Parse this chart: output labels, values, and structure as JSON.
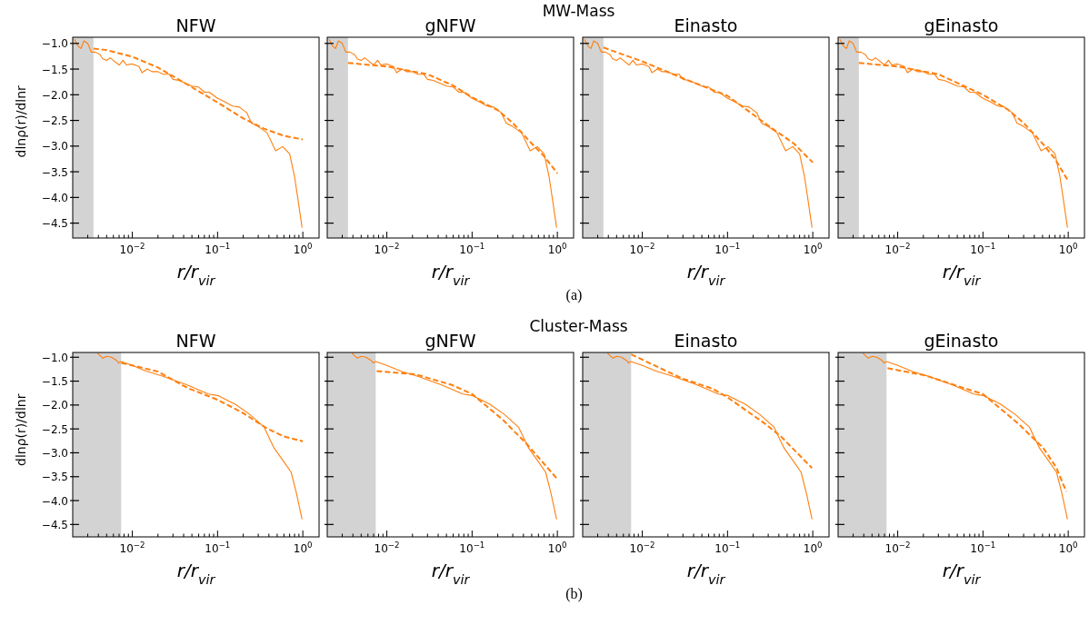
{
  "chart_data": [
    {
      "type": "line",
      "title": "NFW",
      "xlabel": "r/r$_{vir}$",
      "ylabel": "dlnρ(r)/dlnr",
      "annotations": [
        "MW-Mass",
        "(a)"
      ],
      "log": "x",
      "xlim": [
        0.002,
        1.55
      ],
      "ylim": [
        -4.79,
        -0.88
      ],
      "xticks": [
        {
          "value": 0.003,
          "label": null
        },
        {
          "value": 0.004,
          "label": null
        },
        {
          "value": 0.005,
          "label": null
        },
        {
          "value": 0.006,
          "label": null
        },
        {
          "value": 0.007,
          "label": null
        },
        {
          "value": 0.008,
          "label": null
        },
        {
          "value": 0.009,
          "label": null
        },
        {
          "value": 0.01,
          "label": "10$^{−2}$"
        },
        {
          "value": 0.02,
          "label": null
        },
        {
          "value": 0.03,
          "label": null
        },
        {
          "value": 0.04,
          "label": null
        },
        {
          "value": 0.05,
          "label": null
        },
        {
          "value": 0.06,
          "label": null
        },
        {
          "value": 0.07,
          "label": null
        },
        {
          "value": 0.08,
          "label": null
        },
        {
          "value": 0.09,
          "label": null
        },
        {
          "value": 0.1,
          "label": "10$^{−1}$"
        },
        {
          "value": 0.2,
          "label": null
        },
        {
          "value": 0.3,
          "label": null
        },
        {
          "value": 0.4,
          "label": null
        },
        {
          "value": 0.5,
          "label": null
        },
        {
          "value": 0.6,
          "label": null
        },
        {
          "value": 0.7,
          "label": null
        },
        {
          "value": 0.8,
          "label": null
        },
        {
          "value": 0.9,
          "label": null
        },
        {
          "value": 1,
          "label": "10$^{0}$"
        }
      ],
      "yticks": [
        {
          "value": -1,
          "label": "−1.0"
        },
        {
          "value": -1.5,
          "label": "−1.5"
        },
        {
          "value": -2,
          "label": "−2.0"
        },
        {
          "value": -2.5,
          "label": "−2.5"
        },
        {
          "value": -3,
          "label": "−3.0"
        },
        {
          "value": -3.5,
          "label": "−3.5"
        },
        {
          "value": -4,
          "label": "−4.0"
        },
        {
          "value": -4.5,
          "label": "−4.5"
        }
      ],
      "bands": [
        {
          "axis": "x",
          "from": 0.002,
          "to": 0.0035,
          "color": "#d3d3d3"
        }
      ],
      "series": [
        {
          "color": "#ff7f0e",
          "line_style": "solid",
          "x": [
            0.0021,
            0.0023,
            0.0025,
            0.0027,
            0.003,
            0.0033,
            0.0037,
            0.0042,
            0.0045,
            0.005,
            0.0055,
            0.0062,
            0.007,
            0.0078,
            0.0085,
            0.01,
            0.012,
            0.013,
            0.015,
            0.017,
            0.02,
            0.023,
            0.027,
            0.03,
            0.035,
            0.04,
            0.05,
            0.06,
            0.07,
            0.08,
            0.1,
            0.12,
            0.15,
            0.18,
            0.22,
            0.25,
            0.3,
            0.38,
            0.48,
            0.58,
            0.7,
            0.8,
            0.87,
            0.98
          ],
          "values": [
            -0.92,
            -1.05,
            -1.1,
            -0.95,
            -1.0,
            -1.17,
            -1.17,
            -1.22,
            -1.3,
            -1.33,
            -1.28,
            -1.35,
            -1.42,
            -1.33,
            -1.42,
            -1.4,
            -1.45,
            -1.57,
            -1.5,
            -1.55,
            -1.55,
            -1.6,
            -1.6,
            -1.7,
            -1.72,
            -1.76,
            -1.83,
            -1.85,
            -1.95,
            -1.95,
            -2.07,
            -2.13,
            -2.22,
            -2.24,
            -2.35,
            -2.55,
            -2.62,
            -2.74,
            -3.09,
            -3.01,
            -3.15,
            -3.6,
            -4.0,
            -4.59
          ]
        },
        {
          "color": "#ff7f0e",
          "line_style": "dashed",
          "x": [
            0.0035,
            0.005,
            0.01,
            0.02,
            0.044,
            0.1,
            0.2,
            0.35,
            0.6,
            1
          ],
          "values": [
            -1.1,
            -1.13,
            -1.26,
            -1.47,
            -1.8,
            -2.15,
            -2.46,
            -2.66,
            -2.8,
            -2.87
          ]
        }
      ]
    },
    {
      "type": "line",
      "title": "gNFW",
      "xlabel": "r/r$_{vir}$",
      "tick_labels": "x",
      "log": "x",
      "xlim": [
        0.002,
        1.55
      ],
      "ylim": [
        -4.79,
        -0.88
      ],
      "xticks": [
        {
          "value": 0.003,
          "label": null
        },
        {
          "value": 0.004,
          "label": null
        },
        {
          "value": 0.005,
          "label": null
        },
        {
          "value": 0.006,
          "label": null
        },
        {
          "value": 0.007,
          "label": null
        },
        {
          "value": 0.008,
          "label": null
        },
        {
          "value": 0.009,
          "label": null
        },
        {
          "value": 0.01,
          "label": "10$^{−2}$"
        },
        {
          "value": 0.02,
          "label": null
        },
        {
          "value": 0.03,
          "label": null
        },
        {
          "value": 0.04,
          "label": null
        },
        {
          "value": 0.05,
          "label": null
        },
        {
          "value": 0.06,
          "label": null
        },
        {
          "value": 0.07,
          "label": null
        },
        {
          "value": 0.08,
          "label": null
        },
        {
          "value": 0.09,
          "label": null
        },
        {
          "value": 0.1,
          "label": "10$^{−1}$"
        },
        {
          "value": 0.2,
          "label": null
        },
        {
          "value": 0.3,
          "label": null
        },
        {
          "value": 0.4,
          "label": null
        },
        {
          "value": 0.5,
          "label": null
        },
        {
          "value": 0.6,
          "label": null
        },
        {
          "value": 0.7,
          "label": null
        },
        {
          "value": 0.8,
          "label": null
        },
        {
          "value": 0.9,
          "label": null
        },
        {
          "value": 1,
          "label": "10$^{0}$"
        }
      ],
      "yticks": [
        {
          "value": -1,
          "label": null
        },
        {
          "value": -1.5,
          "label": null
        },
        {
          "value": -2,
          "label": null
        },
        {
          "value": -2.5,
          "label": null
        },
        {
          "value": -3,
          "label": null
        },
        {
          "value": -3.5,
          "label": null
        },
        {
          "value": -4,
          "label": null
        },
        {
          "value": -4.5,
          "label": null
        }
      ],
      "bands": [
        {
          "axis": "x",
          "from": 0.002,
          "to": 0.0035,
          "color": "#d3d3d3"
        }
      ],
      "series": [
        {
          "color": "#ff7f0e",
          "line_style": "solid",
          "x": [
            0.0021,
            0.0023,
            0.0025,
            0.0027,
            0.003,
            0.0033,
            0.0037,
            0.0042,
            0.0045,
            0.005,
            0.0055,
            0.0062,
            0.007,
            0.0078,
            0.0085,
            0.01,
            0.012,
            0.013,
            0.015,
            0.017,
            0.02,
            0.023,
            0.027,
            0.03,
            0.035,
            0.04,
            0.05,
            0.06,
            0.07,
            0.08,
            0.1,
            0.12,
            0.15,
            0.18,
            0.22,
            0.25,
            0.3,
            0.38,
            0.48,
            0.58,
            0.7,
            0.8,
            0.87,
            0.98
          ],
          "values": [
            -0.92,
            -1.05,
            -1.1,
            -0.95,
            -1.0,
            -1.17,
            -1.17,
            -1.22,
            -1.3,
            -1.33,
            -1.28,
            -1.35,
            -1.42,
            -1.33,
            -1.42,
            -1.4,
            -1.45,
            -1.57,
            -1.5,
            -1.55,
            -1.55,
            -1.6,
            -1.6,
            -1.7,
            -1.72,
            -1.76,
            -1.83,
            -1.85,
            -1.95,
            -1.95,
            -2.07,
            -2.13,
            -2.22,
            -2.24,
            -2.35,
            -2.55,
            -2.62,
            -2.74,
            -3.09,
            -3.01,
            -3.15,
            -3.6,
            -4.0,
            -4.59
          ]
        },
        {
          "color": "#ff7f0e",
          "line_style": "dashed",
          "x": [
            0.0035,
            0.01,
            0.03,
            0.06,
            0.1,
            0.2,
            0.3,
            0.5,
            0.7,
            1
          ],
          "values": [
            -1.38,
            -1.45,
            -1.6,
            -1.82,
            -2.05,
            -2.3,
            -2.55,
            -2.95,
            -3.2,
            -3.53
          ]
        }
      ]
    },
    {
      "type": "line",
      "title": "Einasto",
      "xlabel": "r/r$_{vir}$",
      "tick_labels": "x",
      "log": "x",
      "xlim": [
        0.002,
        1.55
      ],
      "ylim": [
        -4.79,
        -0.88
      ],
      "xticks": [
        {
          "value": 0.003,
          "label": null
        },
        {
          "value": 0.004,
          "label": null
        },
        {
          "value": 0.005,
          "label": null
        },
        {
          "value": 0.006,
          "label": null
        },
        {
          "value": 0.007,
          "label": null
        },
        {
          "value": 0.008,
          "label": null
        },
        {
          "value": 0.009,
          "label": null
        },
        {
          "value": 0.01,
          "label": "10$^{−2}$"
        },
        {
          "value": 0.02,
          "label": null
        },
        {
          "value": 0.03,
          "label": null
        },
        {
          "value": 0.04,
          "label": null
        },
        {
          "value": 0.05,
          "label": null
        },
        {
          "value": 0.06,
          "label": null
        },
        {
          "value": 0.07,
          "label": null
        },
        {
          "value": 0.08,
          "label": null
        },
        {
          "value": 0.09,
          "label": null
        },
        {
          "value": 0.1,
          "label": "10$^{−1}$"
        },
        {
          "value": 0.2,
          "label": null
        },
        {
          "value": 0.3,
          "label": null
        },
        {
          "value": 0.4,
          "label": null
        },
        {
          "value": 0.5,
          "label": null
        },
        {
          "value": 0.6,
          "label": null
        },
        {
          "value": 0.7,
          "label": null
        },
        {
          "value": 0.8,
          "label": null
        },
        {
          "value": 0.9,
          "label": null
        },
        {
          "value": 1,
          "label": "10$^{0}$"
        }
      ],
      "yticks": [
        {
          "value": -1,
          "label": null
        },
        {
          "value": -1.5,
          "label": null
        },
        {
          "value": -2,
          "label": null
        },
        {
          "value": -2.5,
          "label": null
        },
        {
          "value": -3,
          "label": null
        },
        {
          "value": -3.5,
          "label": null
        },
        {
          "value": -4,
          "label": null
        },
        {
          "value": -4.5,
          "label": null
        }
      ],
      "bands": [
        {
          "axis": "x",
          "from": 0.002,
          "to": 0.0035,
          "color": "#d3d3d3"
        }
      ],
      "series": [
        {
          "color": "#ff7f0e",
          "line_style": "solid",
          "x": [
            0.0021,
            0.0023,
            0.0025,
            0.0027,
            0.003,
            0.0033,
            0.0037,
            0.0042,
            0.0045,
            0.005,
            0.0055,
            0.0062,
            0.007,
            0.0078,
            0.0085,
            0.01,
            0.012,
            0.013,
            0.015,
            0.017,
            0.02,
            0.023,
            0.027,
            0.03,
            0.035,
            0.04,
            0.05,
            0.06,
            0.07,
            0.08,
            0.1,
            0.12,
            0.15,
            0.18,
            0.22,
            0.25,
            0.3,
            0.38,
            0.48,
            0.58,
            0.7,
            0.8,
            0.87,
            0.98
          ],
          "values": [
            -0.92,
            -1.05,
            -1.1,
            -0.95,
            -1.0,
            -1.17,
            -1.17,
            -1.22,
            -1.3,
            -1.33,
            -1.28,
            -1.35,
            -1.42,
            -1.33,
            -1.42,
            -1.4,
            -1.45,
            -1.57,
            -1.5,
            -1.55,
            -1.55,
            -1.6,
            -1.6,
            -1.7,
            -1.72,
            -1.76,
            -1.83,
            -1.85,
            -1.95,
            -1.95,
            -2.07,
            -2.13,
            -2.22,
            -2.24,
            -2.35,
            -2.55,
            -2.62,
            -2.74,
            -3.09,
            -3.01,
            -3.15,
            -3.6,
            -4.0,
            -4.59
          ]
        },
        {
          "color": "#ff7f0e",
          "line_style": "dashed",
          "x": [
            0.0035,
            0.01,
            0.03,
            0.1,
            0.3,
            0.6,
            1
          ],
          "values": [
            -1.08,
            -1.35,
            -1.68,
            -2.02,
            -2.6,
            -2.95,
            -3.32
          ]
        }
      ]
    },
    {
      "type": "line",
      "title": "gEinasto",
      "xlabel": "r/r$_{vir}$",
      "tick_labels": "x",
      "log": "x",
      "xlim": [
        0.002,
        1.55
      ],
      "ylim": [
        -4.79,
        -0.88
      ],
      "xticks": [
        {
          "value": 0.003,
          "label": null
        },
        {
          "value": 0.004,
          "label": null
        },
        {
          "value": 0.005,
          "label": null
        },
        {
          "value": 0.006,
          "label": null
        },
        {
          "value": 0.007,
          "label": null
        },
        {
          "value": 0.008,
          "label": null
        },
        {
          "value": 0.009,
          "label": null
        },
        {
          "value": 0.01,
          "label": "10$^{−2}$"
        },
        {
          "value": 0.02,
          "label": null
        },
        {
          "value": 0.03,
          "label": null
        },
        {
          "value": 0.04,
          "label": null
        },
        {
          "value": 0.05,
          "label": null
        },
        {
          "value": 0.06,
          "label": null
        },
        {
          "value": 0.07,
          "label": null
        },
        {
          "value": 0.08,
          "label": null
        },
        {
          "value": 0.09,
          "label": null
        },
        {
          "value": 0.1,
          "label": "10$^{−1}$"
        },
        {
          "value": 0.2,
          "label": null
        },
        {
          "value": 0.3,
          "label": null
        },
        {
          "value": 0.4,
          "label": null
        },
        {
          "value": 0.5,
          "label": null
        },
        {
          "value": 0.6,
          "label": null
        },
        {
          "value": 0.7,
          "label": null
        },
        {
          "value": 0.8,
          "label": null
        },
        {
          "value": 0.9,
          "label": null
        },
        {
          "value": 1,
          "label": "10$^{0}$"
        }
      ],
      "yticks": [
        {
          "value": -1,
          "label": null
        },
        {
          "value": -1.5,
          "label": null
        },
        {
          "value": -2,
          "label": null
        },
        {
          "value": -2.5,
          "label": null
        },
        {
          "value": -3,
          "label": null
        },
        {
          "value": -3.5,
          "label": null
        },
        {
          "value": -4,
          "label": null
        },
        {
          "value": -4.5,
          "label": null
        }
      ],
      "bands": [
        {
          "axis": "x",
          "from": 0.002,
          "to": 0.0035,
          "color": "#d3d3d3"
        }
      ],
      "series": [
        {
          "color": "#ff7f0e",
          "line_style": "solid",
          "x": [
            0.0021,
            0.0023,
            0.0025,
            0.0027,
            0.003,
            0.0033,
            0.0037,
            0.0042,
            0.0045,
            0.005,
            0.0055,
            0.0062,
            0.007,
            0.0078,
            0.0085,
            0.01,
            0.012,
            0.013,
            0.015,
            0.017,
            0.02,
            0.023,
            0.027,
            0.03,
            0.035,
            0.04,
            0.05,
            0.06,
            0.07,
            0.08,
            0.1,
            0.12,
            0.15,
            0.18,
            0.22,
            0.25,
            0.3,
            0.38,
            0.48,
            0.58,
            0.7,
            0.8,
            0.87,
            0.98
          ],
          "values": [
            -0.92,
            -1.05,
            -1.1,
            -0.95,
            -1.0,
            -1.17,
            -1.17,
            -1.22,
            -1.3,
            -1.33,
            -1.28,
            -1.35,
            -1.42,
            -1.33,
            -1.42,
            -1.4,
            -1.45,
            -1.57,
            -1.5,
            -1.55,
            -1.55,
            -1.6,
            -1.6,
            -1.7,
            -1.72,
            -1.76,
            -1.83,
            -1.85,
            -1.95,
            -1.95,
            -2.07,
            -2.13,
            -2.22,
            -2.24,
            -2.35,
            -2.55,
            -2.62,
            -2.74,
            -3.09,
            -3.01,
            -3.15,
            -3.6,
            -4.0,
            -4.59
          ]
        },
        {
          "color": "#ff7f0e",
          "line_style": "dashed",
          "x": [
            0.0035,
            0.01,
            0.03,
            0.1,
            0.2,
            0.3,
            0.5,
            0.7,
            1
          ],
          "values": [
            -1.38,
            -1.45,
            -1.6,
            -2.0,
            -2.3,
            -2.55,
            -2.95,
            -3.25,
            -3.68
          ]
        }
      ]
    },
    {
      "type": "line",
      "title": "NFW",
      "xlabel": "r/r$_{vir}$",
      "ylabel": "dlnρ(r)/dlnr",
      "annotations": [
        "Cluster-Mass",
        "(b)"
      ],
      "log": "x",
      "xlim": [
        0.002,
        1.55
      ],
      "ylim": [
        -4.76,
        -0.9
      ],
      "xticks": [
        {
          "value": 0.003,
          "label": null
        },
        {
          "value": 0.004,
          "label": null
        },
        {
          "value": 0.005,
          "label": null
        },
        {
          "value": 0.006,
          "label": null
        },
        {
          "value": 0.007,
          "label": null
        },
        {
          "value": 0.008,
          "label": null
        },
        {
          "value": 0.009,
          "label": null
        },
        {
          "value": 0.01,
          "label": "10$^{−2}$"
        },
        {
          "value": 0.02,
          "label": null
        },
        {
          "value": 0.03,
          "label": null
        },
        {
          "value": 0.04,
          "label": null
        },
        {
          "value": 0.05,
          "label": null
        },
        {
          "value": 0.06,
          "label": null
        },
        {
          "value": 0.07,
          "label": null
        },
        {
          "value": 0.08,
          "label": null
        },
        {
          "value": 0.09,
          "label": null
        },
        {
          "value": 0.1,
          "label": "10$^{−1}$"
        },
        {
          "value": 0.2,
          "label": null
        },
        {
          "value": 0.3,
          "label": null
        },
        {
          "value": 0.4,
          "label": null
        },
        {
          "value": 0.5,
          "label": null
        },
        {
          "value": 0.6,
          "label": null
        },
        {
          "value": 0.7,
          "label": null
        },
        {
          "value": 0.8,
          "label": null
        },
        {
          "value": 0.9,
          "label": null
        },
        {
          "value": 1,
          "label": "10$^{0}$"
        }
      ],
      "yticks": [
        {
          "value": -1,
          "label": "−1.0"
        },
        {
          "value": -1.5,
          "label": "−1.5"
        },
        {
          "value": -2,
          "label": "−2.0"
        },
        {
          "value": -2.5,
          "label": "−2.5"
        },
        {
          "value": -3,
          "label": "−3.0"
        },
        {
          "value": -3.5,
          "label": "−3.5"
        },
        {
          "value": -4,
          "label": "−4.0"
        },
        {
          "value": -4.5,
          "label": "−4.5"
        }
      ],
      "bands": [
        {
          "axis": "x",
          "from": 0.002,
          "to": 0.0074,
          "color": "#d3d3d3"
        }
      ],
      "series": [
        {
          "color": "#ff7f0e",
          "line_style": "solid",
          "x": [
            0.0039,
            0.0045,
            0.005,
            0.0057,
            0.0066,
            0.0069,
            0.0074,
            0.01,
            0.0145,
            0.023,
            0.044,
            0.078,
            0.1,
            0.16,
            0.24,
            0.35,
            0.46,
            0.6,
            0.73,
            0.84,
            0.98
          ],
          "values": [
            -0.91,
            -1.02,
            -0.98,
            -1.0,
            -1.07,
            -1.12,
            -1.09,
            -1.17,
            -1.29,
            -1.4,
            -1.58,
            -1.77,
            -1.8,
            -1.98,
            -2.2,
            -2.46,
            -2.9,
            -3.19,
            -3.41,
            -3.84,
            -4.39
          ]
        },
        {
          "color": "#ff7f0e",
          "line_style": "dashed",
          "x": [
            0.0074,
            0.01,
            0.02,
            0.044,
            0.1,
            0.2,
            0.38,
            0.6,
            1
          ],
          "values": [
            -1.12,
            -1.17,
            -1.3,
            -1.64,
            -1.89,
            -2.17,
            -2.49,
            -2.66,
            -2.76
          ]
        }
      ]
    },
    {
      "type": "line",
      "title": "gNFW",
      "xlabel": "r/r$_{vir}$",
      "tick_labels": "x",
      "log": "x",
      "xlim": [
        0.002,
        1.55
      ],
      "ylim": [
        -4.76,
        -0.9
      ],
      "xticks": [
        {
          "value": 0.003,
          "label": null
        },
        {
          "value": 0.004,
          "label": null
        },
        {
          "value": 0.005,
          "label": null
        },
        {
          "value": 0.006,
          "label": null
        },
        {
          "value": 0.007,
          "label": null
        },
        {
          "value": 0.008,
          "label": null
        },
        {
          "value": 0.009,
          "label": null
        },
        {
          "value": 0.01,
          "label": "10$^{−2}$"
        },
        {
          "value": 0.02,
          "label": null
        },
        {
          "value": 0.03,
          "label": null
        },
        {
          "value": 0.04,
          "label": null
        },
        {
          "value": 0.05,
          "label": null
        },
        {
          "value": 0.06,
          "label": null
        },
        {
          "value": 0.07,
          "label": null
        },
        {
          "value": 0.08,
          "label": null
        },
        {
          "value": 0.09,
          "label": null
        },
        {
          "value": 0.1,
          "label": "10$^{−1}$"
        },
        {
          "value": 0.2,
          "label": null
        },
        {
          "value": 0.3,
          "label": null
        },
        {
          "value": 0.4,
          "label": null
        },
        {
          "value": 0.5,
          "label": null
        },
        {
          "value": 0.6,
          "label": null
        },
        {
          "value": 0.7,
          "label": null
        },
        {
          "value": 0.8,
          "label": null
        },
        {
          "value": 0.9,
          "label": null
        },
        {
          "value": 1,
          "label": "10$^{0}$"
        }
      ],
      "yticks": [
        {
          "value": -1,
          "label": null
        },
        {
          "value": -1.5,
          "label": null
        },
        {
          "value": -2,
          "label": null
        },
        {
          "value": -2.5,
          "label": null
        },
        {
          "value": -3,
          "label": null
        },
        {
          "value": -3.5,
          "label": null
        },
        {
          "value": -4,
          "label": null
        },
        {
          "value": -4.5,
          "label": null
        }
      ],
      "bands": [
        {
          "axis": "x",
          "from": 0.002,
          "to": 0.0074,
          "color": "#d3d3d3"
        }
      ],
      "series": [
        {
          "color": "#ff7f0e",
          "line_style": "solid",
          "x": [
            0.0039,
            0.0045,
            0.005,
            0.0057,
            0.0066,
            0.0069,
            0.0074,
            0.01,
            0.0145,
            0.023,
            0.044,
            0.078,
            0.1,
            0.16,
            0.24,
            0.35,
            0.46,
            0.6,
            0.73,
            0.84,
            0.98
          ],
          "values": [
            -0.91,
            -1.02,
            -0.98,
            -1.0,
            -1.07,
            -1.12,
            -1.09,
            -1.17,
            -1.29,
            -1.4,
            -1.58,
            -1.77,
            -1.8,
            -1.98,
            -2.2,
            -2.46,
            -2.9,
            -3.19,
            -3.41,
            -3.84,
            -4.39
          ]
        },
        {
          "color": "#ff7f0e",
          "line_style": "dashed",
          "x": [
            0.0076,
            0.022,
            0.058,
            0.1,
            0.23,
            0.44,
            1
          ],
          "values": [
            -1.29,
            -1.36,
            -1.58,
            -1.77,
            -2.31,
            -2.82,
            -3.55
          ]
        }
      ]
    },
    {
      "type": "line",
      "title": "Einasto",
      "xlabel": "r/r$_{vir}$",
      "tick_labels": "x",
      "log": "x",
      "xlim": [
        0.002,
        1.55
      ],
      "ylim": [
        -4.76,
        -0.9
      ],
      "xticks": [
        {
          "value": 0.003,
          "label": null
        },
        {
          "value": 0.004,
          "label": null
        },
        {
          "value": 0.005,
          "label": null
        },
        {
          "value": 0.006,
          "label": null
        },
        {
          "value": 0.007,
          "label": null
        },
        {
          "value": 0.008,
          "label": null
        },
        {
          "value": 0.009,
          "label": null
        },
        {
          "value": 0.01,
          "label": "10$^{−2}$"
        },
        {
          "value": 0.02,
          "label": null
        },
        {
          "value": 0.03,
          "label": null
        },
        {
          "value": 0.04,
          "label": null
        },
        {
          "value": 0.05,
          "label": null
        },
        {
          "value": 0.06,
          "label": null
        },
        {
          "value": 0.07,
          "label": null
        },
        {
          "value": 0.08,
          "label": null
        },
        {
          "value": 0.09,
          "label": null
        },
        {
          "value": 0.1,
          "label": "10$^{−1}$"
        },
        {
          "value": 0.2,
          "label": null
        },
        {
          "value": 0.3,
          "label": null
        },
        {
          "value": 0.4,
          "label": null
        },
        {
          "value": 0.5,
          "label": null
        },
        {
          "value": 0.6,
          "label": null
        },
        {
          "value": 0.7,
          "label": null
        },
        {
          "value": 0.8,
          "label": null
        },
        {
          "value": 0.9,
          "label": null
        },
        {
          "value": 1,
          "label": "10$^{0}$"
        }
      ],
      "yticks": [
        {
          "value": -1,
          "label": null
        },
        {
          "value": -1.5,
          "label": null
        },
        {
          "value": -2,
          "label": null
        },
        {
          "value": -2.5,
          "label": null
        },
        {
          "value": -3,
          "label": null
        },
        {
          "value": -3.5,
          "label": null
        },
        {
          "value": -4,
          "label": null
        },
        {
          "value": -4.5,
          "label": null
        }
      ],
      "bands": [
        {
          "axis": "x",
          "from": 0.002,
          "to": 0.0074,
          "color": "#d3d3d3"
        }
      ],
      "series": [
        {
          "color": "#ff7f0e",
          "line_style": "solid",
          "x": [
            0.0039,
            0.0045,
            0.005,
            0.0057,
            0.0066,
            0.0069,
            0.0074,
            0.01,
            0.0145,
            0.023,
            0.044,
            0.078,
            0.1,
            0.16,
            0.24,
            0.35,
            0.46,
            0.6,
            0.73,
            0.84,
            0.98
          ],
          "values": [
            -0.91,
            -1.02,
            -0.98,
            -1.0,
            -1.07,
            -1.12,
            -1.09,
            -1.17,
            -1.29,
            -1.4,
            -1.58,
            -1.77,
            -1.8,
            -1.98,
            -2.2,
            -2.46,
            -2.9,
            -3.19,
            -3.41,
            -3.84,
            -4.39
          ]
        },
        {
          "color": "#ff7f0e",
          "line_style": "dashed",
          "x": [
            0.0074,
            0.029,
            0.067,
            0.1,
            0.27,
            0.43,
            0.98
          ],
          "values": [
            -0.94,
            -1.44,
            -1.66,
            -1.84,
            -2.38,
            -2.67,
            -3.32
          ]
        }
      ]
    },
    {
      "type": "line",
      "title": "gEinasto",
      "xlabel": "r/r$_{vir}$",
      "tick_labels": "x",
      "log": "x",
      "xlim": [
        0.002,
        1.55
      ],
      "ylim": [
        -4.76,
        -0.9
      ],
      "xticks": [
        {
          "value": 0.003,
          "label": null
        },
        {
          "value": 0.004,
          "label": null
        },
        {
          "value": 0.005,
          "label": null
        },
        {
          "value": 0.006,
          "label": null
        },
        {
          "value": 0.007,
          "label": null
        },
        {
          "value": 0.008,
          "label": null
        },
        {
          "value": 0.009,
          "label": null
        },
        {
          "value": 0.01,
          "label": "10$^{−2}$"
        },
        {
          "value": 0.02,
          "label": null
        },
        {
          "value": 0.03,
          "label": null
        },
        {
          "value": 0.04,
          "label": null
        },
        {
          "value": 0.05,
          "label": null
        },
        {
          "value": 0.06,
          "label": null
        },
        {
          "value": 0.07,
          "label": null
        },
        {
          "value": 0.08,
          "label": null
        },
        {
          "value": 0.09,
          "label": null
        },
        {
          "value": 0.1,
          "label": "10$^{−1}$"
        },
        {
          "value": 0.2,
          "label": null
        },
        {
          "value": 0.3,
          "label": null
        },
        {
          "value": 0.4,
          "label": null
        },
        {
          "value": 0.5,
          "label": null
        },
        {
          "value": 0.6,
          "label": null
        },
        {
          "value": 0.7,
          "label": null
        },
        {
          "value": 0.8,
          "label": null
        },
        {
          "value": 0.9,
          "label": null
        },
        {
          "value": 1,
          "label": "10$^{0}$"
        }
      ],
      "yticks": [
        {
          "value": -1,
          "label": null
        },
        {
          "value": -1.5,
          "label": null
        },
        {
          "value": -2,
          "label": null
        },
        {
          "value": -2.5,
          "label": null
        },
        {
          "value": -3,
          "label": null
        },
        {
          "value": -3.5,
          "label": null
        },
        {
          "value": -4,
          "label": null
        },
        {
          "value": -4.5,
          "label": null
        }
      ],
      "bands": [
        {
          "axis": "x",
          "from": 0.002,
          "to": 0.0074,
          "color": "#d3d3d3"
        }
      ],
      "series": [
        {
          "color": "#ff7f0e",
          "line_style": "solid",
          "x": [
            0.0039,
            0.0045,
            0.005,
            0.0057,
            0.0066,
            0.0069,
            0.0074,
            0.01,
            0.0145,
            0.023,
            0.044,
            0.078,
            0.1,
            0.16,
            0.24,
            0.35,
            0.46,
            0.6,
            0.73,
            0.84,
            0.98
          ],
          "values": [
            -0.91,
            -1.02,
            -0.98,
            -1.0,
            -1.07,
            -1.12,
            -1.09,
            -1.17,
            -1.29,
            -1.4,
            -1.58,
            -1.77,
            -1.8,
            -1.98,
            -2.2,
            -2.46,
            -2.9,
            -3.19,
            -3.41,
            -3.84,
            -4.39
          ]
        },
        {
          "color": "#ff7f0e",
          "line_style": "dashed",
          "x": [
            0.0076,
            0.021,
            0.054,
            0.1,
            0.26,
            0.51,
            0.72,
            0.95
          ],
          "values": [
            -1.23,
            -1.38,
            -1.62,
            -1.77,
            -2.39,
            -2.9,
            -3.3,
            -3.81
          ]
        }
      ]
    }
  ]
}
